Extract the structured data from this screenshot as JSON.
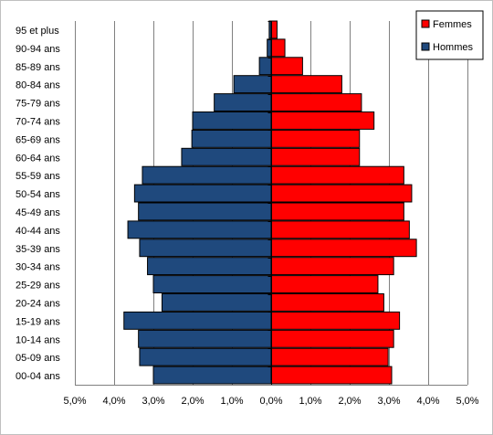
{
  "chart_data": {
    "type": "bar",
    "orientation": "horizontal",
    "layout": "population-pyramid",
    "categories": [
      "95 et plus",
      "90-94 ans",
      "85-89 ans",
      "80-84 ans",
      "75-79 ans",
      "70-74 ans",
      "65-69 ans",
      "60-64 ans",
      "55-59 ans",
      "50-54 ans",
      "45-49 ans",
      "40-44 ans",
      "35-39 ans",
      "30-34 ans",
      "25-29 ans",
      "20-24 ans",
      "15-19 ans",
      "10-14 ans",
      "05-09 ans",
      "00-04 ans"
    ],
    "series": [
      {
        "name": "Femmes",
        "color": "#ff0000",
        "side": "right",
        "values": [
          0.15,
          0.35,
          0.8,
          1.8,
          2.3,
          2.62,
          2.25,
          2.25,
          3.38,
          3.58,
          3.38,
          3.52,
          3.7,
          3.12,
          2.72,
          2.87,
          3.27,
          3.12,
          2.98,
          3.07
        ]
      },
      {
        "name": "Hommes",
        "color": "#1f497d",
        "side": "left",
        "values": [
          0.05,
          0.1,
          0.3,
          0.95,
          1.45,
          2.0,
          2.02,
          2.28,
          3.28,
          3.48,
          3.38,
          3.65,
          3.35,
          3.15,
          3.0,
          2.78,
          3.75,
          3.38,
          3.35,
          3.0
        ]
      }
    ],
    "xlim": [
      -5,
      5
    ],
    "x_ticks": [
      -5,
      -4,
      -3,
      -2,
      -1,
      0,
      1,
      2,
      3,
      4,
      5
    ],
    "x_tick_labels": [
      "5,0%",
      "4,0%",
      "3,0%",
      "2,0%",
      "1,0%",
      "0,0%",
      "1,0%",
      "2,0%",
      "3,0%",
      "4,0%",
      "5,0%"
    ],
    "grid": "vertical",
    "legend_position": "top-right",
    "title": "",
    "xlabel": "",
    "ylabel": ""
  }
}
